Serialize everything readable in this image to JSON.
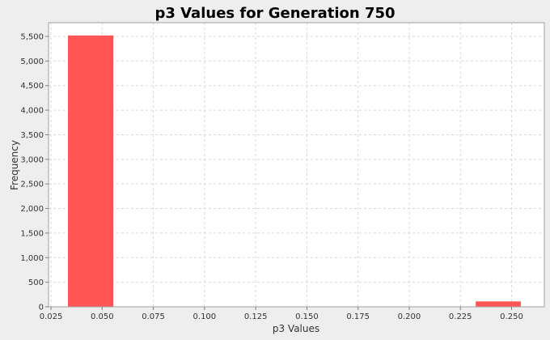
{
  "chart_data": {
    "type": "bar",
    "title": "p3 Values for Generation 750",
    "xlabel": "p3 Values",
    "ylabel": "Frequency",
    "xlim": [
      0.0238,
      0.266
    ],
    "ylim": [
      0,
      5780
    ],
    "x_ticks": [
      0.025,
      0.05,
      0.075,
      0.1,
      0.125,
      0.15,
      0.175,
      0.2,
      0.225,
      0.25
    ],
    "x_tick_labels": [
      "0.025",
      "0.050",
      "0.075",
      "0.100",
      "0.125",
      "0.150",
      "0.175",
      "0.200",
      "0.225",
      "0.250"
    ],
    "y_ticks": [
      0,
      500,
      1000,
      1500,
      2000,
      2500,
      3000,
      3500,
      4000,
      4500,
      5000,
      5500
    ],
    "y_tick_labels": [
      "0",
      "500",
      "1,000",
      "1,500",
      "2,000",
      "2,500",
      "3,000",
      "3,500",
      "4,000",
      "4,500",
      "5,000",
      "5,500"
    ],
    "bars": [
      {
        "x0": 0.0333,
        "x1": 0.0555,
        "value": 5520
      },
      {
        "x0": 0.2325,
        "x1": 0.2545,
        "value": 110
      }
    ],
    "grid": true,
    "legend": "none",
    "colors": {
      "bar": "#ff5555",
      "plot_background": "#ffffff",
      "page_background": "#eeeeee"
    }
  }
}
